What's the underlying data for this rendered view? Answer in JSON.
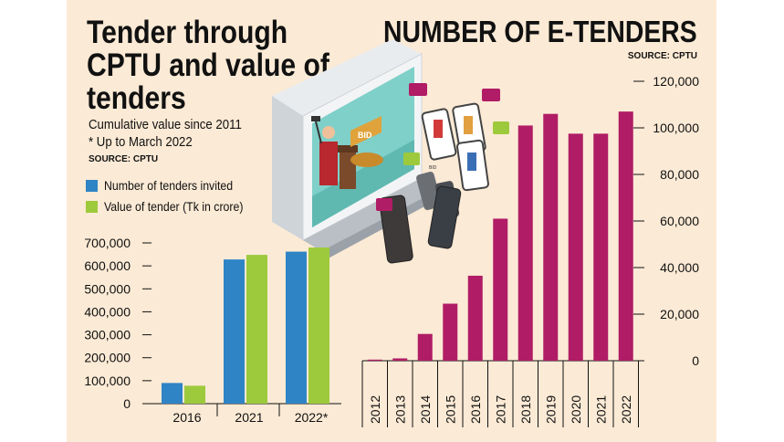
{
  "left": {
    "title_lines": [
      "Tender through",
      "CPTU and value of",
      "tenders"
    ],
    "subtitle": "Cumulative value since 2011",
    "footnote": "* Up to March 2022",
    "source": "SOURCE: CPTU",
    "legend": [
      {
        "label": "Number of tenders invited",
        "color": "#2f84c6"
      },
      {
        "label": "Value of tender (Tk in crore)",
        "color": "#9dca3c"
      }
    ]
  },
  "right": {
    "title": "NUMBER OF E-TENDERS",
    "source": "SOURCE: CPTU"
  },
  "illustration": {
    "monitor_label": "BID",
    "phone_label": "BID"
  },
  "chart_data": [
    {
      "type": "bar",
      "categories": [
        "2016",
        "2021",
        "2022*"
      ],
      "series": [
        {
          "name": "Number of tenders invited",
          "color": "#2f84c6",
          "values": [
            90000,
            628000,
            662000
          ]
        },
        {
          "name": "Value of tender (Tk in crore)",
          "color": "#9dca3c",
          "values": [
            78000,
            648000,
            680000
          ]
        }
      ],
      "ylim": [
        0,
        700000
      ],
      "yticks": [
        0,
        100000,
        200000,
        300000,
        400000,
        500000,
        600000,
        700000
      ],
      "ytick_labels": [
        "0",
        "100,000",
        "200,000",
        "300,000",
        "400,000",
        "500,000",
        "600,000",
        "700,000"
      ],
      "grid": false,
      "legend": "top-left"
    },
    {
      "type": "bar",
      "categories": [
        "2012",
        "2013",
        "2014",
        "2015",
        "2016",
        "2017",
        "2018",
        "2019",
        "2020",
        "2021",
        "2022"
      ],
      "series": [
        {
          "color": "#b01c66",
          "values": [
            200,
            1000,
            11500,
            24500,
            36500,
            61000,
            101000,
            106000,
            97500,
            97500,
            107000
          ]
        }
      ],
      "ylim": [
        0,
        120000
      ],
      "yticks": [
        0,
        20000,
        40000,
        60000,
        80000,
        100000,
        120000
      ],
      "ytick_labels": [
        "0",
        "20,000",
        "40,000",
        "60,000",
        "80,000",
        "100,000",
        "120,000"
      ],
      "grid": false,
      "yaxis_position": "right"
    }
  ]
}
